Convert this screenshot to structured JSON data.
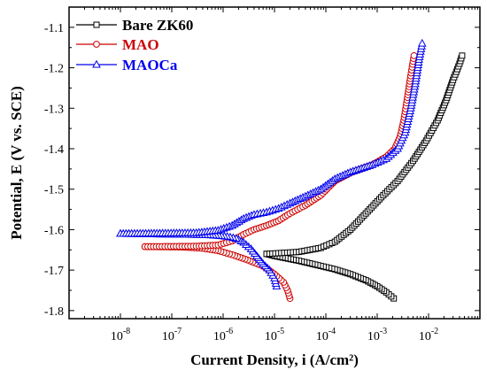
{
  "chart_data": {
    "type": "line",
    "xlabel": "Current Density, i (A/cm²)",
    "ylabel": "Potential, E (V vs. SCE)",
    "xscale": "log",
    "xlim": [
      1e-09,
      0.1
    ],
    "ylim": [
      -1.05,
      -1.82
    ],
    "x_ticks": [
      {
        "value": 1e-08,
        "base": "10",
        "exp": "-8"
      },
      {
        "value": 1e-07,
        "base": "10",
        "exp": "-7"
      },
      {
        "value": 1e-06,
        "base": "10",
        "exp": "-6"
      },
      {
        "value": 1e-05,
        "base": "10",
        "exp": "-5"
      },
      {
        "value": 0.0001,
        "base": "10",
        "exp": "-4"
      },
      {
        "value": 0.001,
        "base": "10",
        "exp": "-3"
      },
      {
        "value": 0.01,
        "base": "10",
        "exp": "-2"
      }
    ],
    "y_ticks": [
      {
        "value": -1.1,
        "label": "-1.1"
      },
      {
        "value": -1.2,
        "label": "-1.2"
      },
      {
        "value": -1.3,
        "label": "-1.3"
      },
      {
        "value": -1.4,
        "label": "-1.4"
      },
      {
        "value": -1.5,
        "label": "-1.5"
      },
      {
        "value": -1.6,
        "label": "-1.6"
      },
      {
        "value": -1.7,
        "label": "-1.7"
      },
      {
        "value": -1.8,
        "label": "-1.8"
      }
    ],
    "grid": false,
    "legend_position": "top-left",
    "series": [
      {
        "name": "Bare ZK60",
        "color": "#000000",
        "marker": "square",
        "cathodic": [
          [
            0.0021,
            -1.77
          ],
          [
            0.0015,
            -1.755
          ],
          [
            0.001,
            -1.74
          ],
          [
            0.0006,
            -1.725
          ],
          [
            0.0003,
            -1.71
          ],
          [
            0.00015,
            -1.698
          ],
          [
            7e-05,
            -1.688
          ],
          [
            3e-05,
            -1.677
          ],
          [
            1e-05,
            -1.665
          ],
          [
            7e-06,
            -1.66
          ]
        ],
        "anodic": [
          [
            7e-06,
            -1.66
          ],
          [
            3e-05,
            -1.655
          ],
          [
            8e-05,
            -1.645
          ],
          [
            0.00015,
            -1.63
          ],
          [
            0.0003,
            -1.6
          ],
          [
            0.0006,
            -1.56
          ],
          [
            0.0012,
            -1.52
          ],
          [
            0.0025,
            -1.48
          ],
          [
            0.005,
            -1.43
          ],
          [
            0.009,
            -1.38
          ],
          [
            0.015,
            -1.33
          ],
          [
            0.022,
            -1.28
          ],
          [
            0.03,
            -1.23
          ],
          [
            0.04,
            -1.19
          ],
          [
            0.045,
            -1.17
          ]
        ]
      },
      {
        "name": "MAO",
        "color": "#cc0000",
        "marker": "circle",
        "cathodic": [
          [
            2e-05,
            -1.77
          ],
          [
            1.8e-05,
            -1.75
          ],
          [
            1.5e-05,
            -1.73
          ],
          [
            1e-05,
            -1.71
          ],
          [
            6e-06,
            -1.69
          ],
          [
            3e-06,
            -1.675
          ],
          [
            1.5e-06,
            -1.662
          ],
          [
            8e-07,
            -1.652
          ],
          [
            4e-07,
            -1.646
          ],
          [
            1.5e-07,
            -1.643
          ],
          [
            3e-08,
            -1.642
          ]
        ],
        "anodic": [
          [
            3e-08,
            -1.642
          ],
          [
            3e-07,
            -1.641
          ],
          [
            8e-07,
            -1.638
          ],
          [
            1.5e-06,
            -1.628
          ],
          [
            2.5e-06,
            -1.612
          ],
          [
            4e-06,
            -1.6
          ],
          [
            7e-06,
            -1.59
          ],
          [
            1.2e-05,
            -1.578
          ],
          [
            2e-05,
            -1.56
          ],
          [
            4e-05,
            -1.54
          ],
          [
            8e-05,
            -1.515
          ],
          [
            0.00015,
            -1.48
          ],
          [
            0.0003,
            -1.46
          ],
          [
            0.0008,
            -1.44
          ],
          [
            0.0015,
            -1.42
          ],
          [
            0.0022,
            -1.4
          ],
          [
            0.0028,
            -1.37
          ],
          [
            0.0033,
            -1.33
          ],
          [
            0.0038,
            -1.28
          ],
          [
            0.0045,
            -1.22
          ],
          [
            0.0052,
            -1.17
          ]
        ]
      },
      {
        "name": "MAOCa",
        "color": "#0000ee",
        "marker": "triangle",
        "cathodic": [
          [
            1.1e-05,
            -1.74
          ],
          [
            1e-05,
            -1.72
          ],
          [
            8e-06,
            -1.7
          ],
          [
            6e-06,
            -1.685
          ],
          [
            4.5e-06,
            -1.665
          ],
          [
            3.5e-06,
            -1.648
          ],
          [
            2.5e-06,
            -1.632
          ],
          [
            1.8e-06,
            -1.622
          ],
          [
            1.2e-06,
            -1.617
          ],
          [
            5e-07,
            -1.613
          ],
          [
            1e-08,
            -1.61
          ]
        ],
        "anodic": [
          [
            1e-08,
            -1.61
          ],
          [
            3e-07,
            -1.608
          ],
          [
            8e-07,
            -1.602
          ],
          [
            1.5e-06,
            -1.59
          ],
          [
            2.5e-06,
            -1.573
          ],
          [
            4e-06,
            -1.563
          ],
          [
            7e-06,
            -1.557
          ],
          [
            1.2e-05,
            -1.548
          ],
          [
            2e-05,
            -1.535
          ],
          [
            4e-05,
            -1.518
          ],
          [
            8e-05,
            -1.5
          ],
          [
            0.00015,
            -1.475
          ],
          [
            0.0003,
            -1.458
          ],
          [
            0.0008,
            -1.44
          ],
          [
            0.0015,
            -1.425
          ],
          [
            0.0025,
            -1.4
          ],
          [
            0.0035,
            -1.36
          ],
          [
            0.0045,
            -1.3
          ],
          [
            0.0055,
            -1.24
          ],
          [
            0.0065,
            -1.18
          ],
          [
            0.0075,
            -1.14
          ]
        ]
      }
    ]
  }
}
